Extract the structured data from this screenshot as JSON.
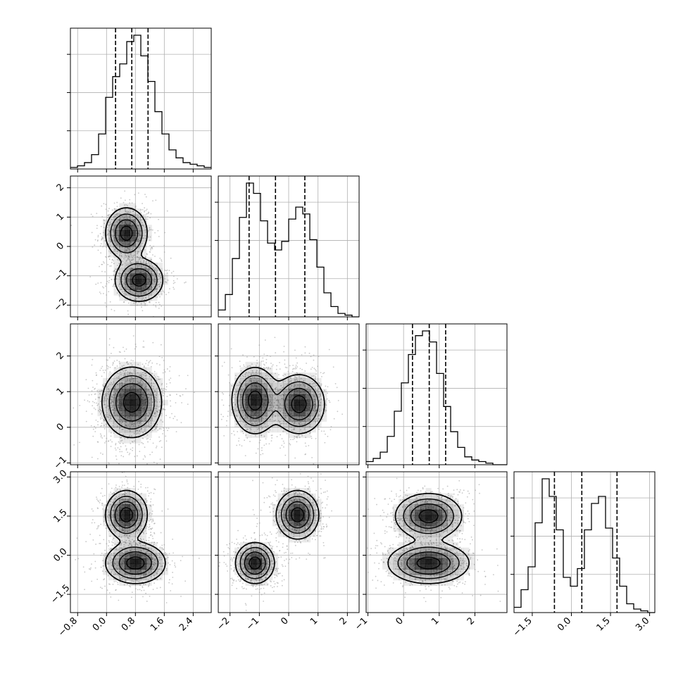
{
  "chart_data": {
    "type": "corner",
    "title": "",
    "grid": true,
    "params": [
      {
        "range": [
          -1.0,
          2.9
        ],
        "ticks": [
          -0.8,
          0.0,
          0.8,
          1.6,
          2.4
        ],
        "tick_labels": [
          "−0.8",
          "0.0",
          "0.8",
          "1.6",
          "2.4"
        ],
        "quantiles": [
          0.25,
          0.7,
          1.15
        ]
      },
      {
        "range": [
          -2.4,
          2.4
        ],
        "ticks": [
          -2,
          -1,
          0,
          1,
          2
        ],
        "tick_labels": [
          "−2",
          "−1",
          "0",
          "1",
          "2"
        ],
        "quantiles": [
          -1.35,
          -0.45,
          0.55
        ]
      },
      {
        "range": [
          -1.05,
          2.9
        ],
        "ticks": [
          -1,
          0,
          1,
          2
        ],
        "tick_labels": [
          "−1",
          "0",
          "1",
          "2"
        ],
        "quantiles": [
          0.25,
          0.72,
          1.18
        ]
      },
      {
        "range": [
          -2.2,
          3.2
        ],
        "ticks": [
          -1.5,
          0.0,
          1.5,
          3.0
        ],
        "tick_labels": [
          "−1.5",
          "0.0",
          "1.5",
          "3.0"
        ],
        "quantiles": [
          -0.65,
          0.4,
          1.75
        ]
      }
    ],
    "histograms": [
      {
        "param": 0,
        "bins": 20,
        "values": [
          1,
          2,
          4,
          9,
          22,
          45,
          58,
          66,
          80,
          84,
          71,
          55,
          36,
          22,
          12,
          7,
          4,
          3,
          2,
          1
        ]
      },
      {
        "param": 1,
        "bins": 20,
        "values": [
          4,
          13,
          34,
          58,
          78,
          72,
          56,
          43,
          39,
          44,
          57,
          64,
          60,
          45,
          29,
          14,
          6,
          2,
          1,
          0
        ]
      },
      {
        "param": 2,
        "bins": 20,
        "values": [
          2,
          4,
          8,
          18,
          34,
          52,
          70,
          82,
          85,
          78,
          58,
          37,
          21,
          11,
          5,
          3,
          2,
          1,
          0,
          0
        ]
      },
      {
        "param": 3,
        "bins": 20,
        "values": [
          3,
          13,
          26,
          51,
          76,
          66,
          47,
          20,
          15,
          25,
          47,
          62,
          66,
          48,
          31,
          15,
          5,
          2,
          1,
          0
        ]
      }
    ],
    "joint_modes": [
      {
        "x_param": 0,
        "y_param": 1,
        "modes": [
          {
            "x": 0.55,
            "y": 0.45,
            "sx": 0.28,
            "sy": 0.42,
            "w": 0.5
          },
          {
            "x": 0.9,
            "y": -1.15,
            "sx": 0.32,
            "sy": 0.35,
            "w": 0.5
          }
        ]
      },
      {
        "x_param": 0,
        "y_param": 2,
        "modes": [
          {
            "x": 0.7,
            "y": 0.7,
            "sx": 0.4,
            "sy": 0.48,
            "w": 1.0
          }
        ]
      },
      {
        "x_param": 1,
        "y_param": 2,
        "modes": [
          {
            "x": -1.15,
            "y": 0.75,
            "sx": 0.38,
            "sy": 0.45,
            "w": 0.5
          },
          {
            "x": 0.35,
            "y": 0.65,
            "sx": 0.42,
            "sy": 0.4,
            "w": 0.5
          }
        ]
      },
      {
        "x_param": 0,
        "y_param": 3,
        "modes": [
          {
            "x": 0.55,
            "y": 1.55,
            "sx": 0.28,
            "sy": 0.45,
            "w": 0.5
          },
          {
            "x": 0.8,
            "y": -0.3,
            "sx": 0.4,
            "sy": 0.38,
            "w": 0.5
          }
        ]
      },
      {
        "x_param": 1,
        "y_param": 3,
        "modes": [
          {
            "x": 0.3,
            "y": 1.55,
            "sx": 0.35,
            "sy": 0.45,
            "w": 0.5
          },
          {
            "x": -1.15,
            "y": -0.3,
            "sx": 0.32,
            "sy": 0.38,
            "w": 0.5
          }
        ]
      },
      {
        "x_param": 2,
        "y_param": 3,
        "modes": [
          {
            "x": 0.7,
            "y": 1.5,
            "sx": 0.45,
            "sy": 0.42,
            "w": 0.5
          },
          {
            "x": 0.7,
            "y": -0.3,
            "sx": 0.55,
            "sy": 0.38,
            "w": 0.5
          }
        ]
      }
    ],
    "contour_levels": [
      0.12,
      0.3,
      0.55,
      0.85
    ],
    "scatter_points_per_panel": 1100,
    "colors": {
      "line": "#000000",
      "point": "#9a9a9a",
      "grid": "#b0b0b0",
      "density": "#000000"
    }
  }
}
